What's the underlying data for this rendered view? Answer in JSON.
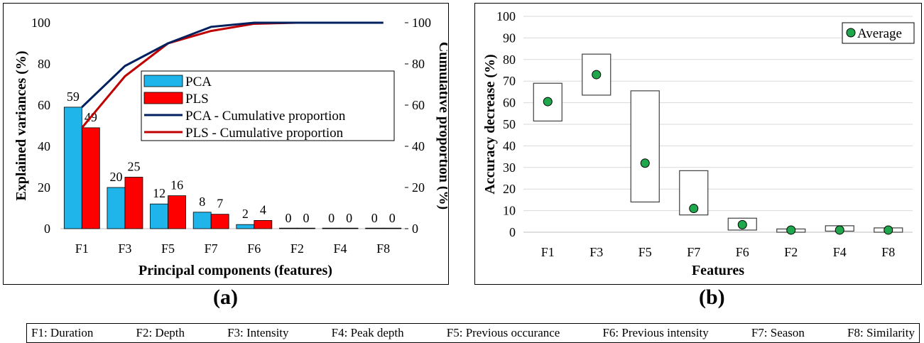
{
  "colors": {
    "pca_bar": "#1FB4EA",
    "pls_bar": "#FF0000",
    "pca_line": "#002060",
    "pls_line": "#C00000",
    "average_marker": "#1EA84B"
  },
  "panel_labels": [
    "(a)",
    "(b)"
  ],
  "feature_legend": [
    "F1: Duration",
    "F2: Depth",
    "F3: Intensity",
    "F4: Peak depth",
    "F5: Previous occurance",
    "F6: Previous intensity",
    "F7: Season",
    "F8: Similarity"
  ],
  "chart_data": [
    {
      "type": "bar",
      "categories": [
        "F1",
        "F3",
        "F5",
        "F7",
        "F6",
        "F2",
        "F4",
        "F8"
      ],
      "series": [
        {
          "name": "PCA",
          "type": "bar",
          "values": [
            59,
            20,
            12,
            8,
            2,
            0,
            0,
            0
          ],
          "data_labels": [
            "59",
            "20",
            "12",
            "8",
            "2",
            "0",
            "0",
            "0"
          ]
        },
        {
          "name": "PLS",
          "type": "bar",
          "values": [
            49,
            25,
            16,
            7,
            4,
            0,
            0,
            0
          ],
          "data_labels": [
            "49",
            "25",
            "16",
            "7",
            "4",
            "0",
            "0",
            "0"
          ]
        },
        {
          "name": "PCA - Cumulative proportion",
          "type": "line",
          "axis": "secondary",
          "values": [
            59,
            79,
            90,
            98,
            100,
            100,
            100,
            100
          ]
        },
        {
          "name": "PLS - Cumulative proportion",
          "type": "line",
          "axis": "secondary",
          "values": [
            49,
            74,
            90,
            96,
            99.5,
            100,
            100,
            100
          ]
        }
      ],
      "xlabel": "Principal components (features)",
      "ylabel": "Explained variances (%)",
      "y2label": "Cumulative proportion (%)",
      "ylim": [
        0,
        100
      ],
      "y2lim": [
        0,
        100
      ],
      "yticks": [
        0,
        20,
        40,
        60,
        80,
        100
      ],
      "grid": false,
      "legend_position": "center-right"
    },
    {
      "type": "box",
      "categories": [
        "F1",
        "F3",
        "F5",
        "F7",
        "F6",
        "F2",
        "F4",
        "F8"
      ],
      "ranges": [
        [
          51.5,
          69
        ],
        [
          63.5,
          82.5
        ],
        [
          14,
          65.5
        ],
        [
          8,
          28.5
        ],
        [
          1,
          6.5
        ],
        [
          0,
          1.5
        ],
        [
          0.5,
          3
        ],
        [
          0,
          2
        ]
      ],
      "series": [
        {
          "name": "Average",
          "values": [
            60.5,
            73,
            32,
            11,
            3.5,
            1,
            1,
            1
          ]
        }
      ],
      "xlabel": "Features",
      "ylabel": "Accuracy decrease (%)",
      "ylim": [
        0,
        100
      ],
      "yticks": [
        0,
        10,
        20,
        30,
        40,
        50,
        60,
        70,
        80,
        90,
        100
      ],
      "grid": true,
      "legend_position": "top-right"
    }
  ]
}
